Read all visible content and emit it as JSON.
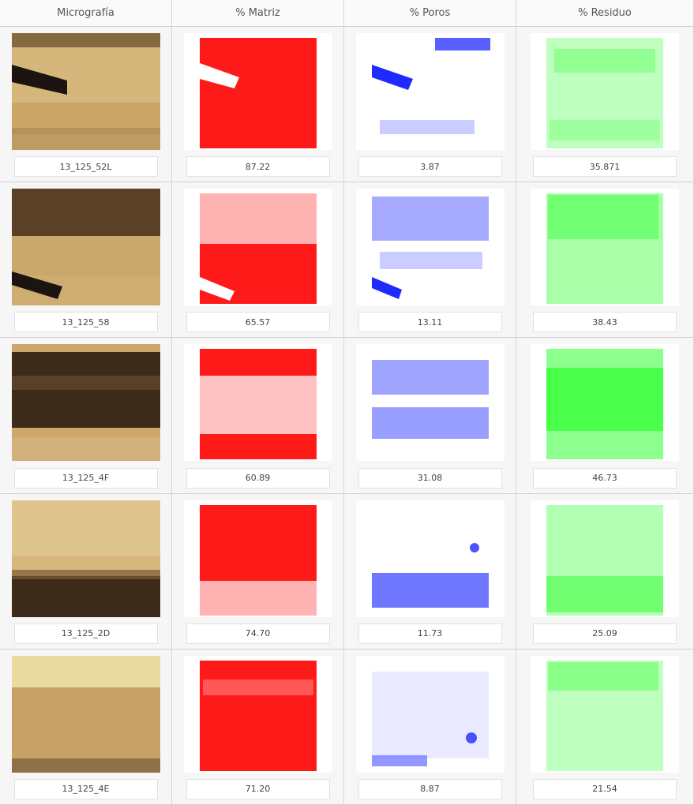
{
  "headers": [
    "Micrografía",
    "% Matriz",
    "% Poros",
    "% Residuo"
  ],
  "rows": [
    {
      "label": "13_125_52L",
      "matriz": "87.22",
      "poros": "3.87",
      "residuo": "35.871"
    },
    {
      "label": "13_125_58",
      "matriz": "65.57",
      "poros": "13.11",
      "residuo": "38.43"
    },
    {
      "label": "13_125_4F",
      "matriz": "60.89",
      "poros": "31.08",
      "residuo": "46.73"
    },
    {
      "label": "13_125_2D",
      "matriz": "74.70",
      "poros": "11.73",
      "residuo": "25.09"
    },
    {
      "label": "13_125_4E",
      "matriz": "71.20",
      "poros": "8.87",
      "residuo": "21.54"
    }
  ],
  "colors": {
    "matriz": "#ff1a1a",
    "poros": "#1f2aff",
    "residuo": "#33ff33",
    "micro_light": "#d8b77c",
    "micro_dark": "#3b2b18"
  }
}
